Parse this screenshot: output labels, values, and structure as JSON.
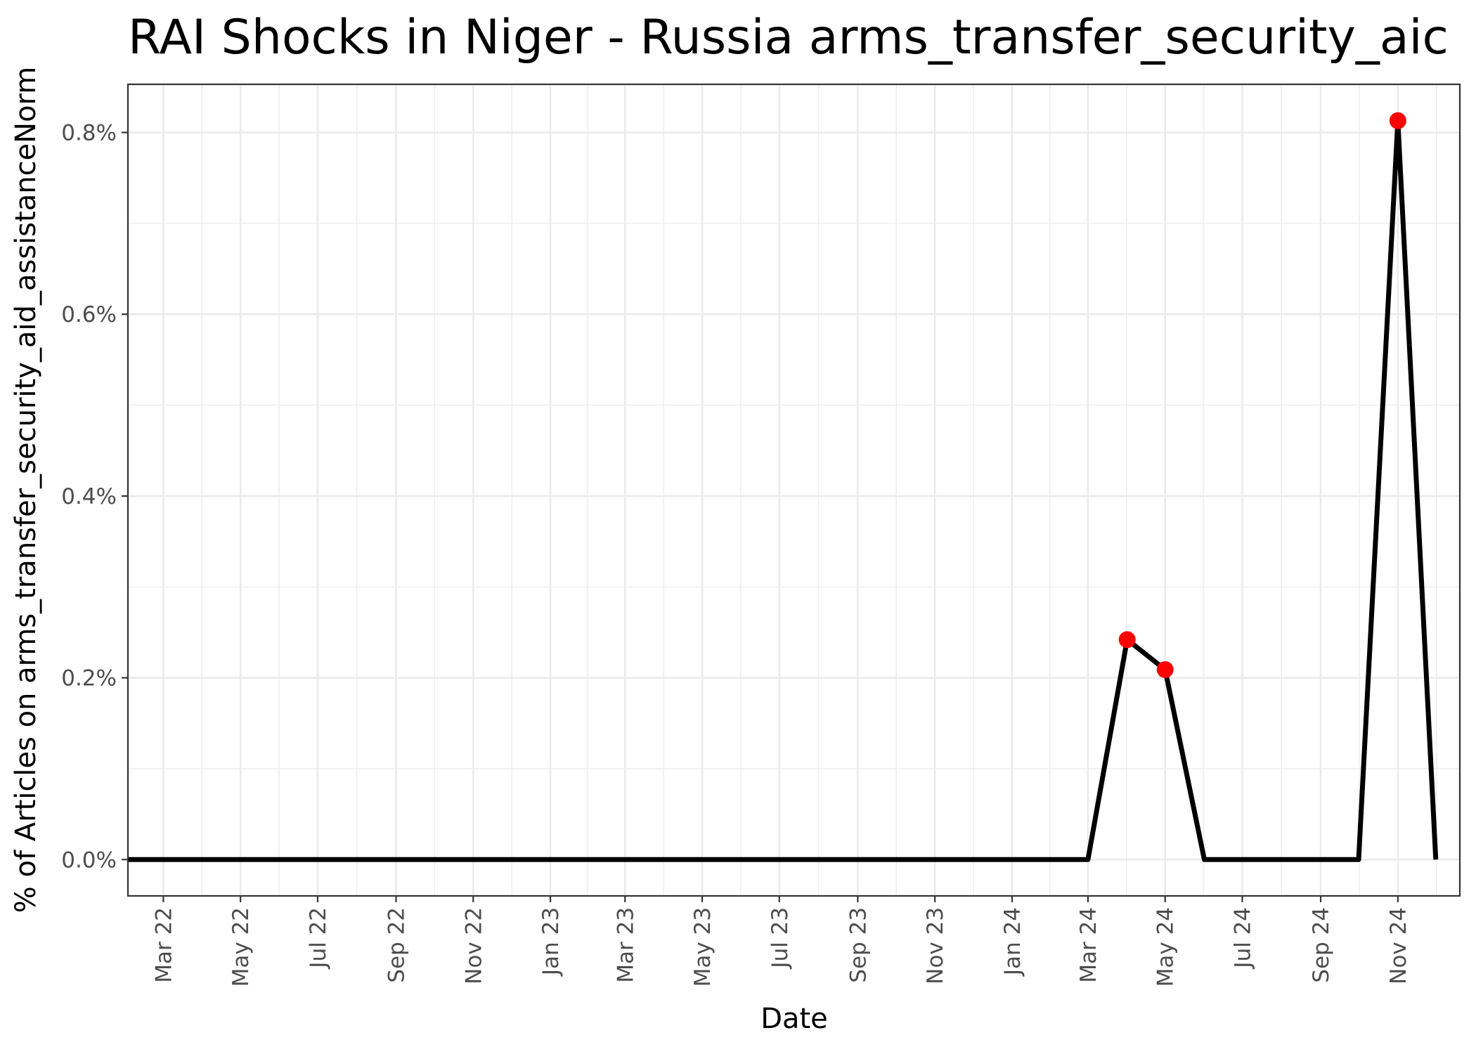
{
  "chart_data": {
    "type": "line",
    "title": "RAI Shocks in Niger - Russia arms_transfer_security_aic",
    "xlabel": "Date",
    "ylabel": "% of Articles on arms_transfer_security_aid_assistanceNorm",
    "x_tick_labels": [
      "Mar 22",
      "May 22",
      "Jul 22",
      "Sep 22",
      "Nov 22",
      "Jan 23",
      "Mar 23",
      "May 23",
      "Jul 23",
      "Sep 23",
      "Nov 23",
      "Jan 24",
      "Mar 24",
      "May 24",
      "Jul 24",
      "Sep 24",
      "Nov 24"
    ],
    "x_tick_dates": [
      "2022-03-01",
      "2022-05-01",
      "2022-07-01",
      "2022-09-01",
      "2022-11-01",
      "2023-01-01",
      "2023-03-01",
      "2023-05-01",
      "2023-07-01",
      "2023-09-01",
      "2023-11-01",
      "2024-01-01",
      "2024-03-01",
      "2024-05-01",
      "2024-07-01",
      "2024-09-01",
      "2024-11-01"
    ],
    "y_tick_labels": [
      "0.0%",
      "0.2%",
      "0.4%",
      "0.6%",
      "0.8%"
    ],
    "y_ticks": [
      0,
      0.2,
      0.4,
      0.6,
      0.8
    ],
    "xlim": [
      "2022-02-01",
      "2024-12-20"
    ],
    "ylim": [
      -0.04,
      0.853
    ],
    "grid": true,
    "series": [
      {
        "color": "#000000",
        "x": [
          "2022-02-01",
          "2022-03-01",
          "2022-04-01",
          "2022-05-01",
          "2022-06-01",
          "2022-07-01",
          "2022-08-01",
          "2022-09-01",
          "2022-10-01",
          "2022-11-01",
          "2022-12-01",
          "2023-01-01",
          "2023-02-01",
          "2023-03-01",
          "2023-04-01",
          "2023-05-01",
          "2023-06-01",
          "2023-07-01",
          "2023-08-01",
          "2023-09-01",
          "2023-10-01",
          "2023-11-01",
          "2023-12-01",
          "2024-01-01",
          "2024-02-01",
          "2024-03-01",
          "2024-04-01",
          "2024-05-01",
          "2024-06-01",
          "2024-07-01",
          "2024-08-01",
          "2024-09-01",
          "2024-10-01",
          "2024-11-01",
          "2024-12-01"
        ],
        "y": [
          0,
          0,
          0,
          0,
          0,
          0,
          0,
          0,
          0,
          0,
          0,
          0,
          0,
          0,
          0,
          0,
          0,
          0,
          0,
          0,
          0,
          0,
          0,
          0,
          0,
          0,
          0.242,
          0.209,
          0,
          0,
          0,
          0,
          0,
          0.813,
          0
        ]
      }
    ],
    "shocks": {
      "color": "#ff0000",
      "x": [
        "2024-04-01",
        "2024-05-01",
        "2024-11-01"
      ],
      "y": [
        0.242,
        0.209,
        0.813
      ]
    }
  }
}
